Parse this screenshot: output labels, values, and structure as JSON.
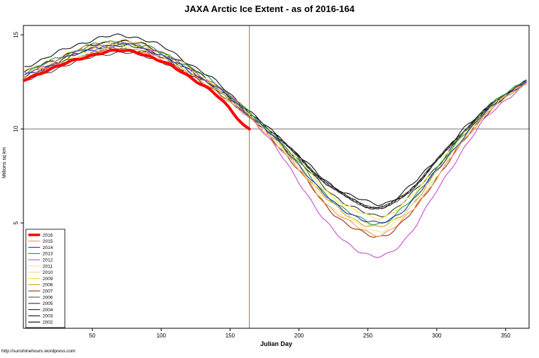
{
  "title": "JAXA Arctic Ice Extent - as of 2016-164",
  "footer": "http://sunshinehours.wordpress.com",
  "chart_data": {
    "type": "line",
    "title": "JAXA Arctic Ice Extent - as of 2016-164",
    "xlabel": "Julian Day",
    "ylabel": "Millions sq km",
    "x_ticks": [
      50,
      100,
      150,
      200,
      250,
      300,
      350
    ],
    "y_ticks": [
      5,
      10,
      15
    ],
    "xlim": [
      0,
      367
    ],
    "ylim": [
      -0.6,
      15.5
    ],
    "grid": false,
    "legend_position": "bottom-left",
    "reference_lines": {
      "horizontal_y": 10,
      "horizontal_color": "#666666",
      "vertical_x": 164,
      "vertical_color": "#C23B3B"
    },
    "current_day": 164,
    "x": [
      1,
      20,
      40,
      60,
      80,
      100,
      120,
      140,
      160,
      180,
      200,
      220,
      240,
      260,
      280,
      300,
      320,
      340,
      365
    ],
    "series": [
      {
        "name": "2016",
        "color": "#FF0000",
        "width": 4,
        "values": [
          12.6,
          13.2,
          13.7,
          14.1,
          14.1,
          13.6,
          12.8,
          11.8,
          10.2,
          null,
          null,
          null,
          null,
          null,
          null,
          null,
          null,
          null,
          null
        ],
        "end_point": {
          "x": 164,
          "y": 10.0
        }
      },
      {
        "name": "2015",
        "color": "#F2975A",
        "width": 1.1,
        "values": [
          12.7,
          13.3,
          13.8,
          14.2,
          14.2,
          13.7,
          12.9,
          12.0,
          10.8,
          9.5,
          7.8,
          6.0,
          4.9,
          4.4,
          5.5,
          7.4,
          9.4,
          11.1,
          12.4
        ]
      },
      {
        "name": "2014",
        "color": "#2137C4",
        "width": 1.1,
        "values": [
          12.8,
          13.4,
          14.0,
          14.4,
          14.4,
          13.9,
          13.1,
          12.2,
          11.0,
          9.7,
          8.1,
          6.4,
          5.4,
          5.0,
          6.0,
          7.8,
          9.6,
          11.2,
          12.5
        ]
      },
      {
        "name": "2013",
        "color": "#1C9E3A",
        "width": 1.1,
        "values": [
          13.0,
          13.6,
          14.2,
          14.6,
          14.5,
          14.1,
          13.3,
          12.4,
          11.1,
          9.8,
          8.2,
          6.5,
          5.4,
          5.0,
          6.1,
          7.9,
          9.7,
          11.3,
          12.6
        ]
      },
      {
        "name": "2012",
        "color": "#C24FD0",
        "width": 1.1,
        "values": [
          12.9,
          13.5,
          14.1,
          14.5,
          14.5,
          14.0,
          13.2,
          12.3,
          11.0,
          9.3,
          7.2,
          5.0,
          3.7,
          3.2,
          4.4,
          6.7,
          9.0,
          10.9,
          12.4
        ]
      },
      {
        "name": "2011",
        "color": "#E4E69A",
        "width": 1.1,
        "values": [
          12.7,
          13.3,
          13.8,
          14.2,
          14.2,
          13.8,
          13.0,
          12.1,
          10.9,
          9.6,
          7.9,
          6.1,
          5.0,
          4.6,
          5.7,
          7.5,
          9.5,
          11.1,
          12.4
        ]
      },
      {
        "name": "2010",
        "color": "#EDD97E",
        "width": 1.1,
        "values": [
          12.9,
          13.5,
          14.1,
          14.5,
          14.5,
          14.0,
          13.2,
          12.3,
          11.0,
          9.7,
          8.1,
          6.4,
          5.3,
          4.9,
          5.9,
          7.7,
          9.6,
          11.2,
          12.5
        ]
      },
      {
        "name": "2009",
        "color": "#F5E32A",
        "width": 1.1,
        "values": [
          12.8,
          13.4,
          14.0,
          14.4,
          14.4,
          13.9,
          13.1,
          12.2,
          11.0,
          9.7,
          8.3,
          6.7,
          5.7,
          5.3,
          6.3,
          8.0,
          9.7,
          11.2,
          12.4
        ]
      },
      {
        "name": "2008",
        "color": "#D99E23",
        "width": 1.1,
        "values": [
          13.0,
          13.6,
          14.2,
          14.6,
          14.6,
          14.1,
          13.3,
          12.3,
          11.1,
          9.6,
          8.0,
          6.3,
          5.2,
          4.8,
          5.8,
          7.7,
          9.6,
          11.1,
          12.5
        ]
      },
      {
        "name": "2007",
        "color": "#99330F",
        "width": 1.1,
        "values": [
          12.7,
          13.3,
          13.8,
          14.2,
          14.2,
          13.8,
          13.0,
          12.1,
          10.9,
          9.5,
          7.8,
          5.9,
          4.7,
          4.3,
          5.4,
          7.4,
          9.4,
          11.1,
          12.5
        ]
      },
      {
        "name": "2006",
        "color": "#4A4A4A",
        "width": 1.1,
        "values": [
          12.5,
          13.1,
          13.6,
          14.0,
          14.0,
          13.6,
          12.9,
          12.0,
          10.9,
          9.8,
          8.5,
          7.1,
          6.2,
          5.8,
          6.7,
          8.3,
          9.9,
          11.3,
          12.6
        ]
      },
      {
        "name": "2005",
        "color": "#333333",
        "width": 1.1,
        "values": [
          12.7,
          13.3,
          13.8,
          14.2,
          14.2,
          13.8,
          13.0,
          12.1,
          10.9,
          9.7,
          8.3,
          6.8,
          5.8,
          5.4,
          6.4,
          8.0,
          9.8,
          11.2,
          12.4
        ]
      },
      {
        "name": "2004",
        "color": "#262626",
        "width": 1.1,
        "values": [
          12.8,
          13.4,
          14.0,
          14.4,
          14.4,
          13.9,
          13.1,
          12.2,
          11.0,
          9.8,
          8.5,
          7.1,
          6.2,
          5.8,
          6.7,
          8.3,
          9.9,
          11.3,
          12.6
        ]
      },
      {
        "name": "2003",
        "color": "#141414",
        "width": 1.1,
        "values": [
          13.3,
          13.9,
          14.5,
          14.9,
          14.9,
          14.4,
          13.5,
          12.5,
          11.2,
          9.9,
          8.6,
          7.2,
          6.4,
          6.0,
          6.9,
          8.4,
          10.0,
          11.3,
          12.5
        ]
      },
      {
        "name": "2002",
        "color": "#000000",
        "width": 1.1,
        "values": [
          13.0,
          13.6,
          14.2,
          14.6,
          14.6,
          14.1,
          13.3,
          12.3,
          11.1,
          9.9,
          8.5,
          7.1,
          6.2,
          5.8,
          6.7,
          8.3,
          9.9,
          11.3,
          12.5
        ]
      }
    ]
  }
}
